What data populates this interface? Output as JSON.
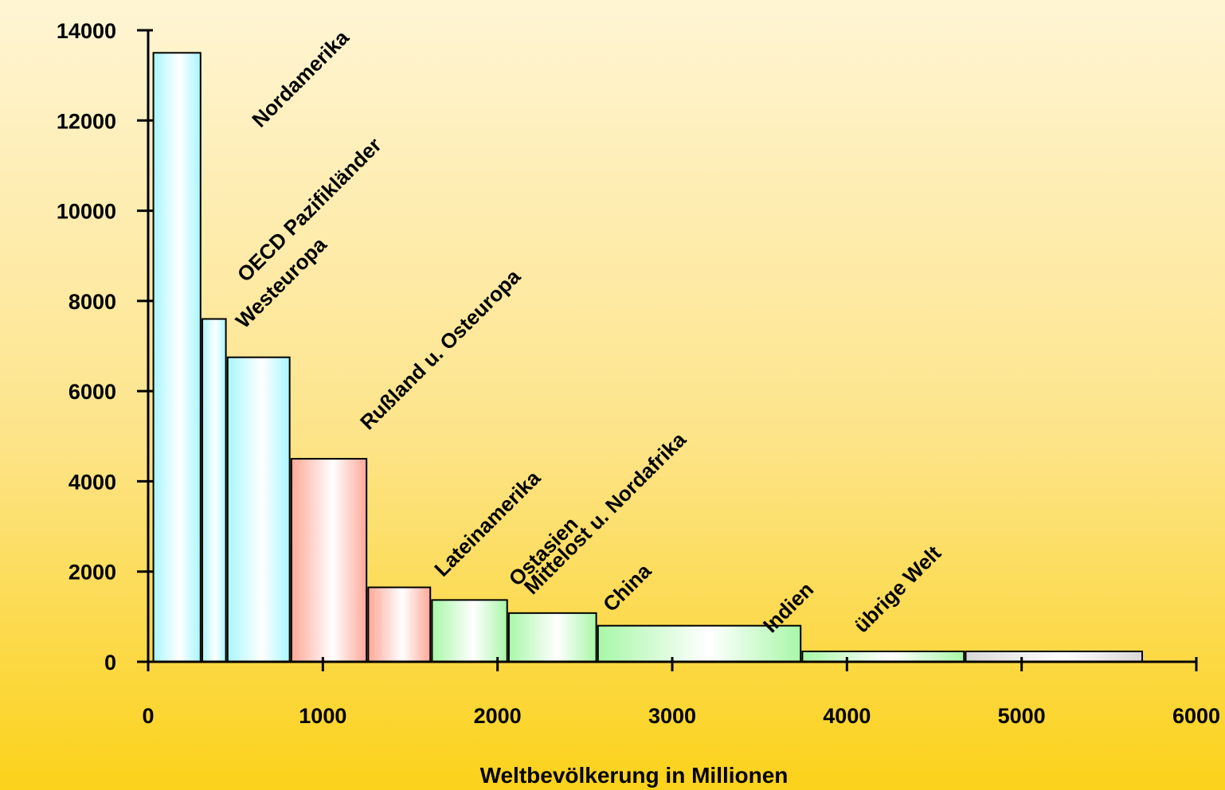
{
  "chart_data": {
    "type": "bar",
    "variant": "variable-width bars (width = population, height = value per capita)",
    "title": "",
    "xlabel": "Weltbevölkerung in Millionen",
    "ylabel": "",
    "xlim": [
      0,
      6000
    ],
    "ylim": [
      0,
      14000
    ],
    "x_ticks": [
      0,
      1000,
      2000,
      3000,
      4000,
      5000,
      6000
    ],
    "y_ticks": [
      0,
      2000,
      4000,
      6000,
      8000,
      10000,
      12000,
      14000
    ],
    "grid": false,
    "legend": "none",
    "categories": [
      {
        "name": "Nordamerika",
        "x_start": 30,
        "x_end": 300,
        "value": 13500,
        "group": "blue"
      },
      {
        "name": "OECD Pazifikländer",
        "x_start": 310,
        "x_end": 445,
        "value": 7600,
        "group": "blue"
      },
      {
        "name": "Westeuropa",
        "x_start": 455,
        "x_end": 810,
        "value": 6750,
        "group": "blue"
      },
      {
        "name": "Rußland u. Osteuropa",
        "x_start": 820,
        "x_end": 1250,
        "value": 4500,
        "group": "red"
      },
      {
        "name": "Lateinamerika",
        "x_start": 1260,
        "x_end": 1615,
        "value": 1650,
        "group": "red"
      },
      {
        "name": "Ostasien",
        "x_start": 1625,
        "x_end": 2055,
        "value": 1370,
        "group": "green"
      },
      {
        "name": "Mittelost u. Nordafrika",
        "x_start": 2065,
        "x_end": 2565,
        "value": 1080,
        "group": "green"
      },
      {
        "name": "China",
        "x_start": 2575,
        "x_end": 3735,
        "value": 800,
        "group": "green"
      },
      {
        "name": "Indien",
        "x_start": 3745,
        "x_end": 4670,
        "value": 230,
        "group": "green"
      },
      {
        "name": "übrige Welt",
        "x_start": 4680,
        "x_end": 5690,
        "value": 230,
        "group": "grey"
      }
    ],
    "colors": {
      "blue": "#a8f6ff",
      "red": "#ffa898",
      "green": "#a8f7a8",
      "grey": "#d8d8d8",
      "axis": "#000000"
    }
  }
}
